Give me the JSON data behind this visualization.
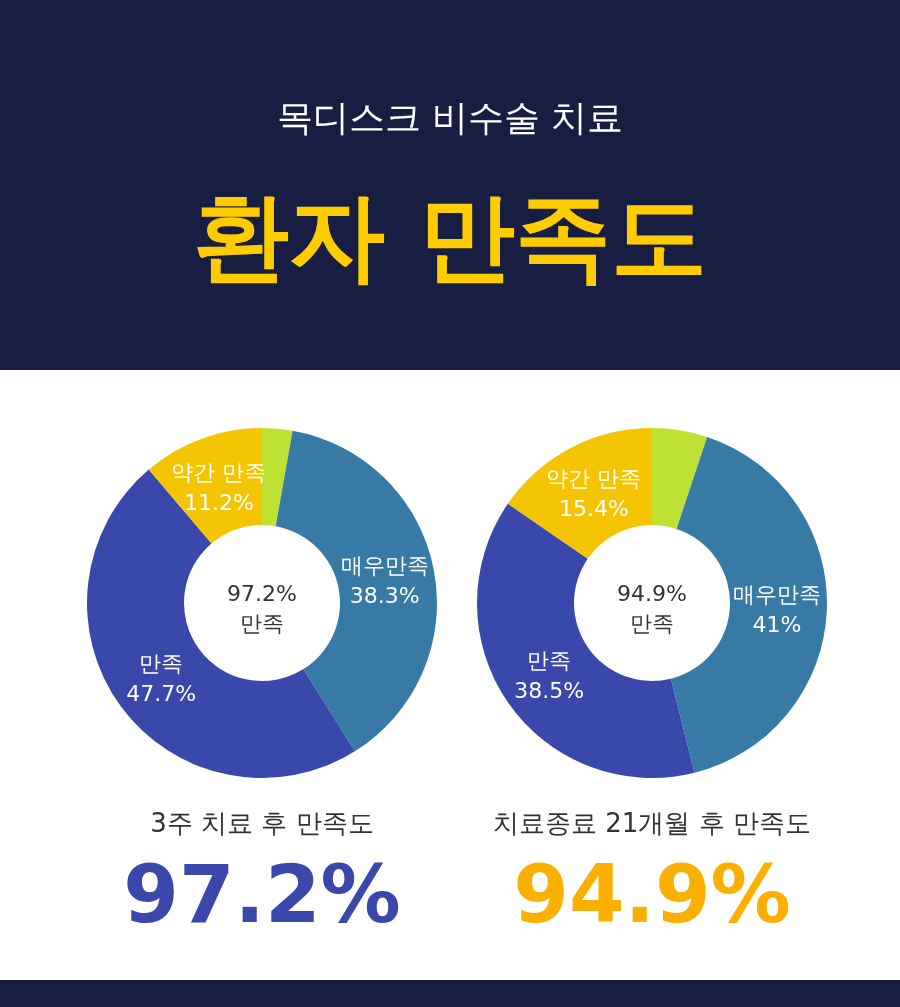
{
  "chart_data": [
    {
      "type": "other",
      "title": "환자 만족도",
      "subtitle": "목디스크 비수술 치료"
    },
    {
      "type": "donut",
      "title": "3주 치료 후 만족도",
      "categories": [
        null,
        "매우만족",
        "만족",
        "약간 만족"
      ],
      "values": [
        2.8,
        38.3,
        47.7,
        11.2
      ],
      "value_labels": [
        null,
        "38.3%",
        "47.7%",
        "11.2%"
      ],
      "colors": [
        "#bde234",
        "#377aa5",
        "#3a47ab",
        "#f5c400"
      ],
      "annotations": [
        "97.2%",
        "만족",
        "97.2%"
      ]
    },
    {
      "type": "donut",
      "title": "치료종료 21개월 후 만족도",
      "categories": [
        null,
        "매우만족",
        "만족",
        "약간 만족"
      ],
      "values": [
        5.1,
        41,
        38.5,
        15.4
      ],
      "value_labels": [
        null,
        "41%",
        "38.5%",
        "15.4%"
      ],
      "colors": [
        "#bde234",
        "#377aa5",
        "#3a47ab",
        "#f5c400"
      ],
      "annotations": [
        "94.9%",
        "만족",
        "94.9%"
      ]
    }
  ]
}
